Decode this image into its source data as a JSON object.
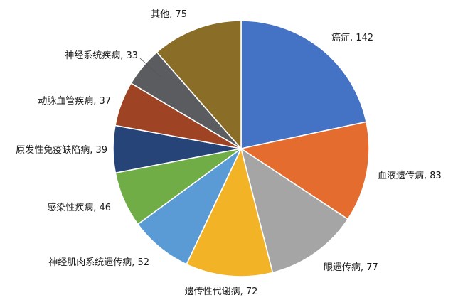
{
  "chart_data": {
    "type": "pie",
    "title": "",
    "slices": [
      {
        "label": "癌症",
        "value": 142,
        "color": "#4472C4",
        "display": "癌症, 142"
      },
      {
        "label": "血液遗传病",
        "value": 83,
        "color": "#E46C2F",
        "display": "血液遗传病, 83"
      },
      {
        "label": "眼遗传病",
        "value": 77,
        "color": "#A5A5A5",
        "display": "眼遗传病, 77"
      },
      {
        "label": "遗传性代谢病",
        "value": 72,
        "color": "#F2B327",
        "display": "遗传性代谢病, 72"
      },
      {
        "label": "神经肌肉系统遗传病",
        "value": 52,
        "color": "#5B9BD5",
        "display": "神经肌肉系统遗传病, 52"
      },
      {
        "label": "感染性疾病",
        "value": 46,
        "color": "#70AD47",
        "display": "感染性疾病, 46"
      },
      {
        "label": "原发性免疫缺陷病",
        "value": 39,
        "color": "#264478",
        "display": "原发性免疫缺陷病, 39"
      },
      {
        "label": "动脉血管疾病",
        "value": 37,
        "color": "#9E4323",
        "display": "动脉血管疾病, 37"
      },
      {
        "label": "神经系统疾病",
        "value": 33,
        "color": "#5A5C60",
        "display": "神经系统疾病, 33"
      },
      {
        "label": "其他",
        "value": 75,
        "color": "#8A6D26",
        "display": "其他, 75"
      }
    ],
    "start_angle": "12 o'clock",
    "direction": "clockwise",
    "legend": "none",
    "data_labels": "outside with leader lines"
  }
}
